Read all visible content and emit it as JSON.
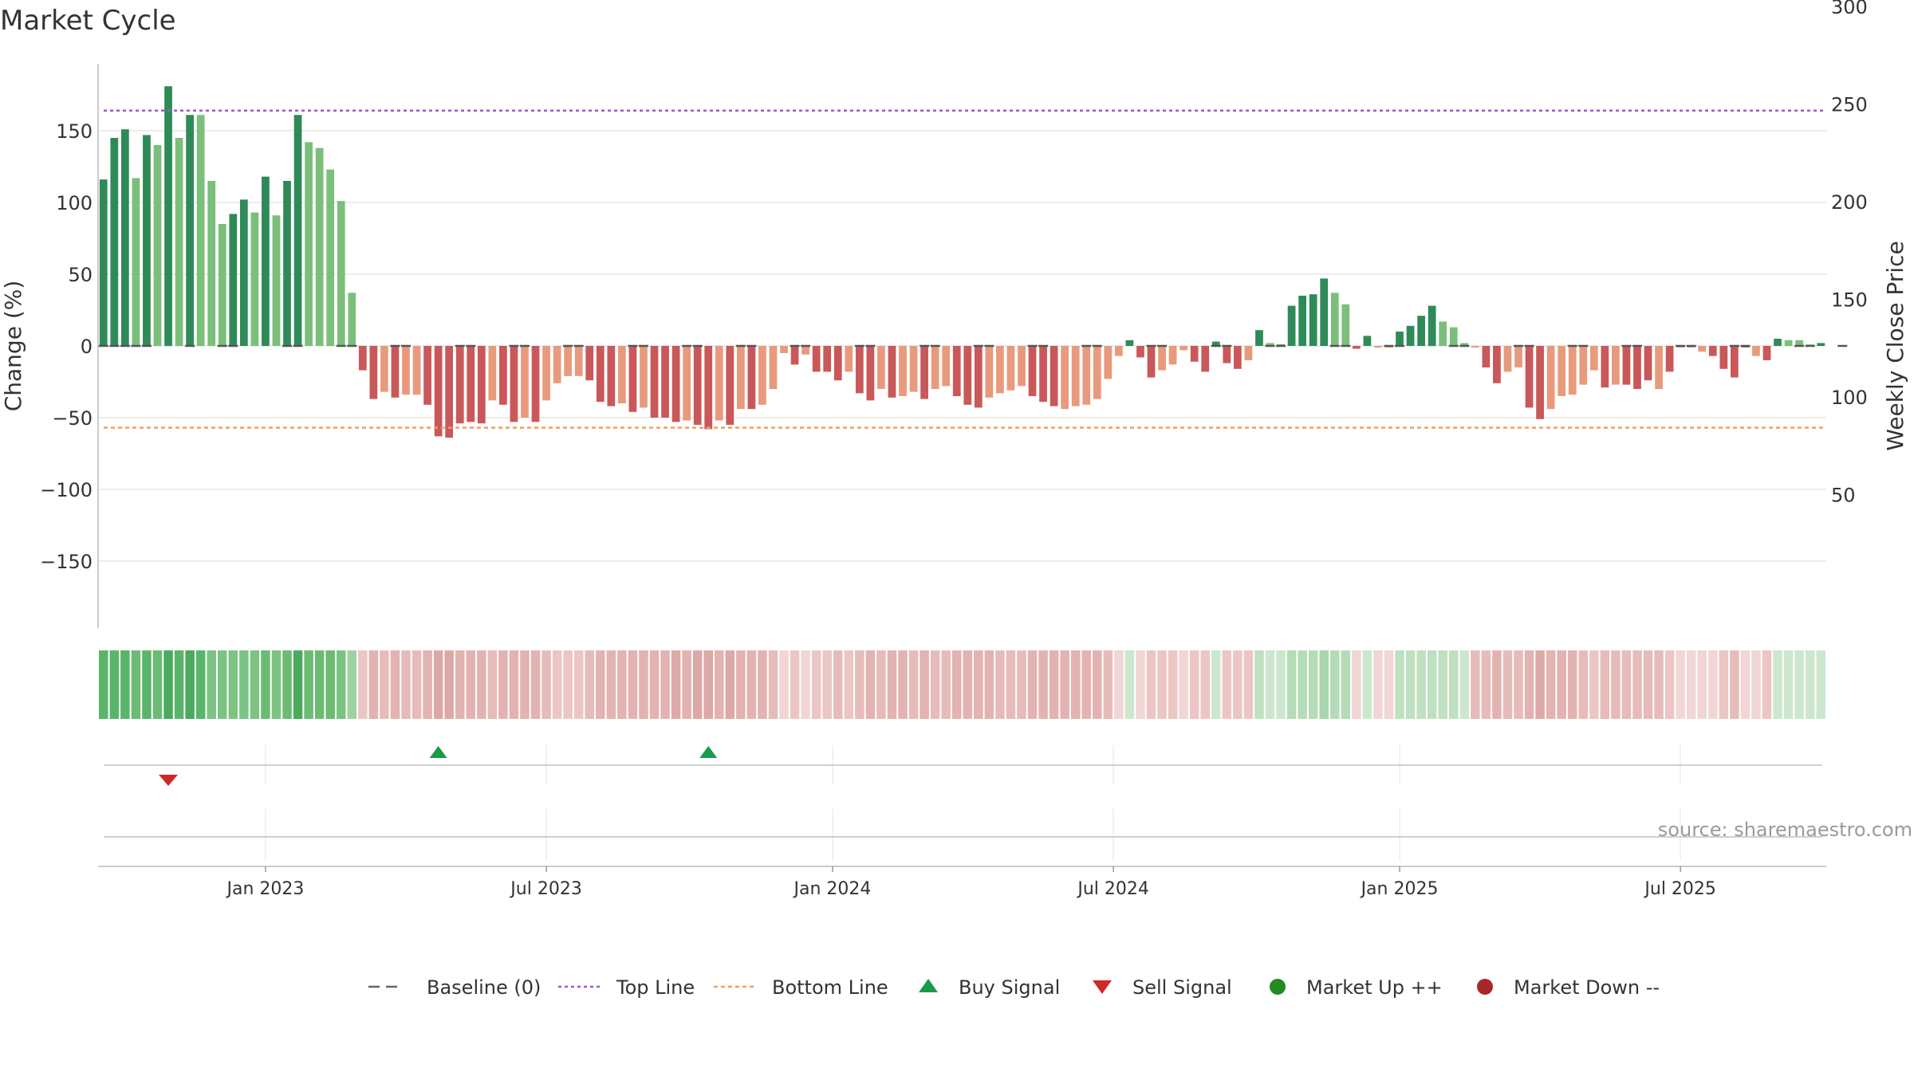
{
  "chart_data": {
    "type": "bar",
    "title": "Market Cycle",
    "ylabel": "Change (%)",
    "y2label": "Weekly Close Price",
    "ylim": [
      -197,
      197
    ],
    "y2lim": [
      24,
      323
    ],
    "yticks": [
      "150",
      "100",
      "50",
      "0",
      "−50",
      "−100",
      "−150"
    ],
    "y2ticks": [
      "300",
      "250",
      "200",
      "150",
      "100",
      "50"
    ],
    "xticks": [
      {
        "label": "Jan 2023",
        "index": 15
      },
      {
        "label": "Jul 2023",
        "index": 41
      },
      {
        "label": "Jan 2024",
        "index": 67.5
      },
      {
        "label": "Jul 2024",
        "index": 93.5
      },
      {
        "label": "Jan 2025",
        "index": 120
      },
      {
        "label": "Jul 2025",
        "index": 146
      }
    ],
    "top_line": 164,
    "bottom_line": -57,
    "baseline": 0,
    "change_values": [
      116,
      145,
      151,
      117,
      147,
      140,
      181,
      145,
      161,
      161,
      115,
      85,
      92,
      102,
      93,
      118,
      91,
      115,
      161,
      142,
      138,
      123,
      101,
      37,
      -17,
      -37,
      -32,
      -36,
      -34,
      -34,
      -41,
      -63,
      -64,
      -54,
      -53,
      -54,
      -38,
      -41,
      -53,
      -50,
      -53,
      -38,
      -26,
      -21,
      -21,
      -24,
      -39,
      -42,
      -40,
      -46,
      -43,
      -50,
      -50,
      -53,
      -52,
      -55,
      -58,
      -52,
      -55,
      -44,
      -44,
      -41,
      -30,
      -5,
      -13,
      -6,
      -18,
      -18,
      -24,
      -18,
      -33,
      -38,
      -30,
      -36,
      -35,
      -32,
      -37,
      -30,
      -28,
      -35,
      -41,
      -43,
      -36,
      -33,
      -31,
      -28,
      -35,
      -39,
      -42,
      -44,
      -42,
      -41,
      -37,
      -23,
      -7,
      4,
      -8,
      -22,
      -17,
      -13,
      -3,
      -11,
      -18,
      3,
      -12,
      -16,
      -10,
      11,
      2,
      1,
      28,
      35,
      36,
      47,
      37,
      29,
      -2,
      7,
      -1,
      -1,
      10,
      14,
      21,
      28,
      17,
      13,
      2,
      -1,
      -15,
      -26,
      -18,
      -15,
      -43,
      -51,
      -44,
      -35,
      -34,
      -27,
      -17,
      -29,
      -27,
      -27,
      -30,
      -24,
      -30,
      -18,
      -1,
      -1,
      -4,
      -7,
      -16,
      -22,
      -1,
      -7,
      -10,
      5,
      4,
      4,
      1,
      2
    ],
    "bar_colors": [
      "#2e8b57",
      "#2e8b57",
      "#2e8b57",
      "#7bbf7b",
      "#2e8b57",
      "#7bbf7b",
      "#2e8b57",
      "#7bbf7b",
      "#2e8b57",
      "#7bbf7b",
      "#7bbf7b",
      "#7bbf7b",
      "#2e8b57",
      "#2e8b57",
      "#7bbf7b",
      "#2e8b57",
      "#7bbf7b",
      "#2e8b57",
      "#2e8b57",
      "#7bbf7b",
      "#7bbf7b",
      "#7bbf7b",
      "#7bbf7b",
      "#7bbf7b",
      "#c9585a",
      "#c9585a",
      "#e89a7d",
      "#c9585a",
      "#e89a7d",
      "#e89a7d",
      "#c9585a",
      "#c9585a",
      "#c9585a",
      "#c9585a",
      "#c9585a",
      "#c9585a",
      "#e89a7d",
      "#c9585a",
      "#c9585a",
      "#e89a7d",
      "#c9585a",
      "#e89a7d",
      "#e89a7d",
      "#e89a7d",
      "#e89a7d",
      "#c9585a",
      "#c9585a",
      "#c9585a",
      "#e89a7d",
      "#c9585a",
      "#e89a7d",
      "#c9585a",
      "#c9585a",
      "#c9585a",
      "#e89a7d",
      "#c9585a",
      "#c9585a",
      "#e89a7d",
      "#c9585a",
      "#e89a7d",
      "#c9585a",
      "#e89a7d",
      "#e89a7d",
      "#e89a7d",
      "#c9585a",
      "#e89a7d",
      "#c9585a",
      "#c9585a",
      "#c9585a",
      "#e89a7d",
      "#c9585a",
      "#c9585a",
      "#e89a7d",
      "#c9585a",
      "#e89a7d",
      "#e89a7d",
      "#c9585a",
      "#e89a7d",
      "#e89a7d",
      "#c9585a",
      "#c9585a",
      "#c9585a",
      "#e89a7d",
      "#e89a7d",
      "#e89a7d",
      "#e89a7d",
      "#c9585a",
      "#c9585a",
      "#c9585a",
      "#e89a7d",
      "#e89a7d",
      "#e89a7d",
      "#e89a7d",
      "#e89a7d",
      "#e89a7d",
      "#2e8b57",
      "#c9585a",
      "#c9585a",
      "#e89a7d",
      "#e89a7d",
      "#e89a7d",
      "#c9585a",
      "#c9585a",
      "#2e8b57",
      "#c9585a",
      "#c9585a",
      "#e89a7d",
      "#2e8b57",
      "#7bbf7b",
      "#2e8b57",
      "#2e8b57",
      "#2e8b57",
      "#2e8b57",
      "#2e8b57",
      "#7bbf7b",
      "#7bbf7b",
      "#c9585a",
      "#2e8b57",
      "#e89a7d",
      "#e89a7d",
      "#2e8b57",
      "#2e8b57",
      "#2e8b57",
      "#2e8b57",
      "#7bbf7b",
      "#7bbf7b",
      "#7bbf7b",
      "#e89a7d",
      "#c9585a",
      "#c9585a",
      "#e89a7d",
      "#e89a7d",
      "#c9585a",
      "#c9585a",
      "#e89a7d",
      "#e89a7d",
      "#e89a7d",
      "#e89a7d",
      "#e89a7d",
      "#c9585a",
      "#e89a7d",
      "#c9585a",
      "#c9585a",
      "#c9585a",
      "#e89a7d",
      "#c9585a",
      "#e89a7d",
      "#e89a7d",
      "#e89a7d",
      "#c9585a",
      "#c9585a",
      "#c9585a",
      "#c9585a",
      "#e89a7d",
      "#c9585a",
      "#2e8b57",
      "#7bbf7b",
      "#7bbf7b",
      "#7bbf7b",
      "#2e8b57"
    ],
    "bottom_marker_indices": [
      0,
      1,
      2,
      3,
      4,
      8,
      11,
      12,
      17,
      18,
      22,
      23,
      27,
      28,
      33,
      34,
      38,
      39,
      43,
      44,
      49,
      50,
      54,
      55,
      59,
      60,
      64,
      65,
      70,
      71,
      76,
      77,
      81,
      82,
      86,
      87,
      91,
      92,
      97,
      98,
      103,
      104,
      108,
      109,
      114,
      115,
      119,
      120,
      125,
      126,
      131,
      132,
      136,
      137,
      141,
      142,
      146,
      147,
      151,
      152,
      157,
      158,
      161
    ],
    "heatmap_colors": [
      "#5ab56a",
      "#5ab56a",
      "#5ab56a",
      "#6cbb73",
      "#5ab56a",
      "#6cbb73",
      "#4aab5e",
      "#5ab56a",
      "#4aab5e",
      "#5ab56a",
      "#7cc383",
      "#7cc383",
      "#7cc383",
      "#7cc383",
      "#7cc383",
      "#6cbb73",
      "#7cc383",
      "#6cbb73",
      "#4aab5e",
      "#6cbb73",
      "#6cbb73",
      "#6cbb73",
      "#7cc383",
      "#9fd2a2",
      "#ebc6c4",
      "#e2b3b1",
      "#e6bcba",
      "#e2b3b1",
      "#e6bcba",
      "#e6bcba",
      "#e2b3b1",
      "#dca9a6",
      "#dca9a6",
      "#e2b3b1",
      "#e2b3b1",
      "#e2b3b1",
      "#e6bcba",
      "#e2b3b1",
      "#e2b3b1",
      "#e2b3b1",
      "#e2b3b1",
      "#e6bcba",
      "#ebc6c4",
      "#ebc6c4",
      "#ebc6c4",
      "#e6bcba",
      "#e2b3b1",
      "#e2b3b1",
      "#e2b3b1",
      "#e2b3b1",
      "#e2b3b1",
      "#e2b3b1",
      "#e2b3b1",
      "#dca9a6",
      "#e2b3b1",
      "#dca9a6",
      "#dca9a6",
      "#e2b3b1",
      "#dca9a6",
      "#e2b3b1",
      "#e2b3b1",
      "#e2b3b1",
      "#e6bcba",
      "#f1d6d5",
      "#ebc6c4",
      "#f1d6d5",
      "#ebc6c4",
      "#ebc6c4",
      "#e6bcba",
      "#ebc6c4",
      "#e6bcba",
      "#e2b3b1",
      "#e6bcba",
      "#e2b3b1",
      "#e2b3b1",
      "#e6bcba",
      "#e2b3b1",
      "#e6bcba",
      "#e6bcba",
      "#e2b3b1",
      "#e2b3b1",
      "#e2b3b1",
      "#e2b3b1",
      "#e6bcba",
      "#e6bcba",
      "#e6bcba",
      "#e2b3b1",
      "#e2b3b1",
      "#e2b3b1",
      "#e2b3b1",
      "#e2b3b1",
      "#e2b3b1",
      "#e2b3b1",
      "#e6bcba",
      "#f1d6d5",
      "#cde7cf",
      "#f1d6d5",
      "#ebc6c4",
      "#ebc6c4",
      "#ebc6c4",
      "#f1d6d5",
      "#ebc6c4",
      "#ebc6c4",
      "#cde7cf",
      "#ebc6c4",
      "#ebc6c4",
      "#ebc6c4",
      "#bfe0c1",
      "#cde7cf",
      "#cde7cf",
      "#b4dcb7",
      "#b4dcb7",
      "#b4dcb7",
      "#a9d6ac",
      "#b4dcb7",
      "#b4dcb7",
      "#f1d6d5",
      "#cde7cf",
      "#f1d6d5",
      "#f1d6d5",
      "#bfe0c1",
      "#bfe0c1",
      "#bfe0c1",
      "#bfe0c1",
      "#bfe0c1",
      "#bfe0c1",
      "#cde7cf",
      "#e6bcba",
      "#e6bcba",
      "#e2b3b1",
      "#e6bcba",
      "#e6bcba",
      "#e2b3b1",
      "#dca9a6",
      "#e2b3b1",
      "#e2b3b1",
      "#e2b3b1",
      "#e6bcba",
      "#ebc6c4",
      "#e6bcba",
      "#e6bcba",
      "#e6bcba",
      "#e6bcba",
      "#e6bcba",
      "#e6bcba",
      "#ebc6c4",
      "#f1d6d5",
      "#f1d6d5",
      "#f1d6d5",
      "#f1d6d5",
      "#ebc6c4",
      "#e6bcba",
      "#f1d6d5",
      "#f1d6d5",
      "#ebc6c4",
      "#cde7cf",
      "#cde7cf",
      "#cde7cf",
      "#cde7cf",
      "#cde7cf"
    ],
    "buy_signal_indices": [
      31,
      56
    ],
    "sell_signal_indices": [
      6
    ],
    "colors": {
      "strong_up": "#2e8b57",
      "weak_up": "#7bbf7b",
      "strong_down": "#c9585a",
      "weak_down": "#e89a7d",
      "top_line": "#9b59d0",
      "bottom_line": "#f0a060",
      "buy_signal": "#1a9a4a",
      "sell_signal": "#d02828",
      "market_up": "#228b22",
      "market_down": "#a82828",
      "baseline": "#555555"
    },
    "legend": [
      {
        "label": "Baseline (0)",
        "marker": "dash-line"
      },
      {
        "label": "Top Line",
        "marker": "dotted-purple"
      },
      {
        "label": "Bottom Line",
        "marker": "dotted-orange"
      },
      {
        "label": "Buy Signal",
        "marker": "triangle-up-green"
      },
      {
        "label": "Sell Signal",
        "marker": "triangle-down-red"
      },
      {
        "label": "Market Up ++",
        "marker": "circle-green"
      },
      {
        "label": "Market Down --",
        "marker": "circle-red"
      }
    ],
    "legend_position": "bottom-center",
    "grid": true
  },
  "source_text": "source: sharemaestro.com"
}
